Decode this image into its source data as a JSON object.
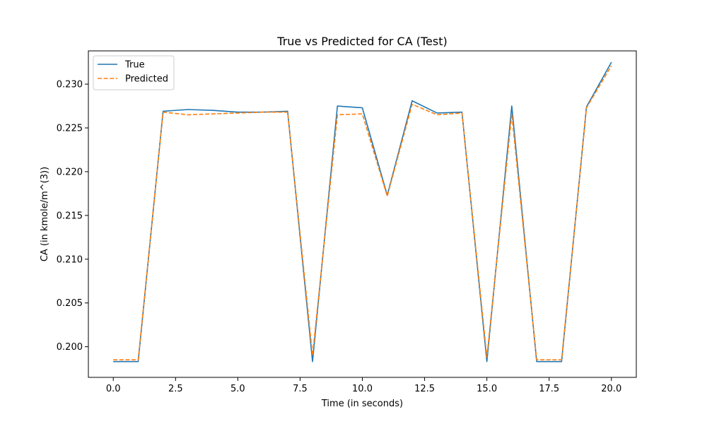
{
  "chart_data": {
    "type": "line",
    "title": "True vs Predicted for CA (Test)",
    "xlabel": "Time (in seconds)",
    "ylabel": "CA (in kmole/m^(3))",
    "xlim": [
      -1.0,
      21.0
    ],
    "ylim": [
      0.1965,
      0.2338
    ],
    "xticks": [
      0.0,
      2.5,
      5.0,
      7.5,
      10.0,
      12.5,
      15.0,
      17.5,
      20.0
    ],
    "xtick_labels": [
      "0.0",
      "2.5",
      "5.0",
      "7.5",
      "10.0",
      "12.5",
      "15.0",
      "17.5",
      "20.0"
    ],
    "yticks": [
      0.2,
      0.205,
      0.21,
      0.215,
      0.22,
      0.225,
      0.23
    ],
    "ytick_labels": [
      "0.200",
      "0.205",
      "0.210",
      "0.215",
      "0.220",
      "0.225",
      "0.230"
    ],
    "grid": false,
    "legend_position": "top-left",
    "x": [
      0,
      1,
      2,
      3,
      4,
      5,
      6,
      7,
      8,
      9,
      10,
      11,
      12,
      13,
      14,
      15,
      16,
      17,
      18,
      19,
      20
    ],
    "series": [
      {
        "name": "True",
        "color": "#1f77b4",
        "style": "solid",
        "values": [
          0.1983,
          0.1983,
          0.2269,
          0.2271,
          0.227,
          0.2268,
          0.2268,
          0.2269,
          0.1983,
          0.2275,
          0.2273,
          0.2173,
          0.2281,
          0.2267,
          0.2268,
          0.1983,
          0.2275,
          0.1983,
          0.1983,
          0.2274,
          0.2325
        ]
      },
      {
        "name": "Predicted",
        "color": "#ff7f0e",
        "style": "dashed",
        "values": [
          0.1985,
          0.1985,
          0.2268,
          0.2265,
          0.2266,
          0.2267,
          0.2268,
          0.2268,
          0.199,
          0.2265,
          0.2266,
          0.2172,
          0.2277,
          0.2265,
          0.2267,
          0.1988,
          0.2266,
          0.1985,
          0.1985,
          0.2273,
          0.2321
        ]
      }
    ]
  }
}
